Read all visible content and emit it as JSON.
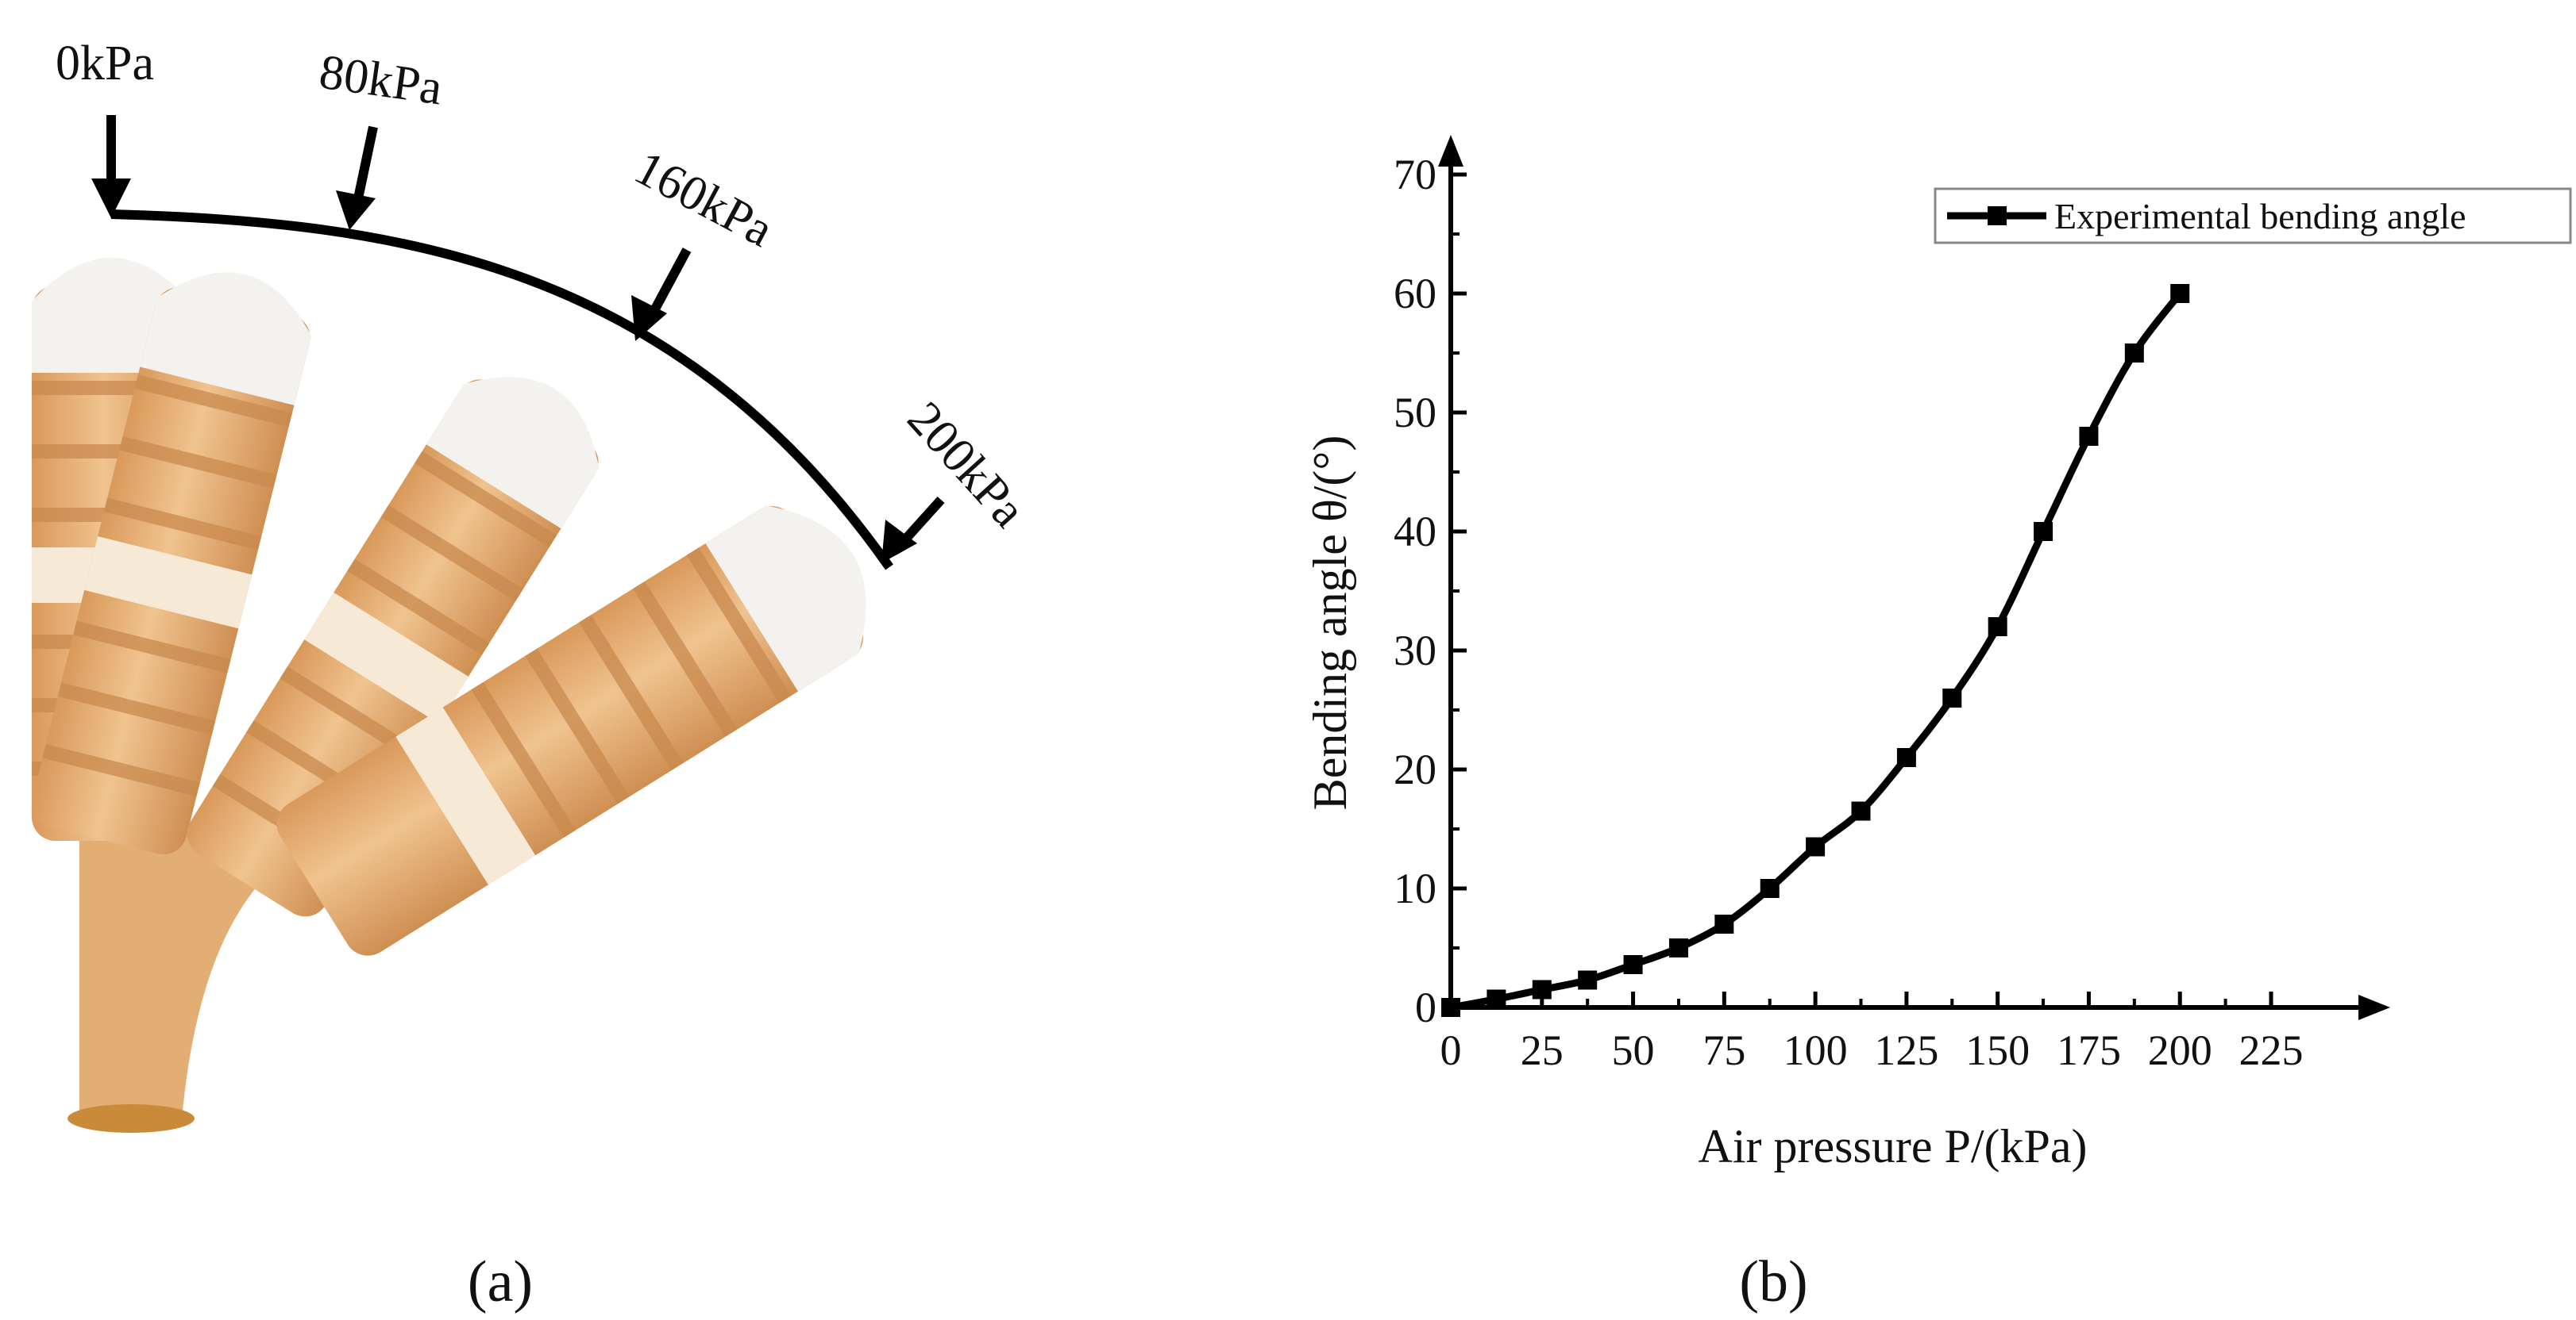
{
  "panel_a": {
    "caption": "(a)",
    "pressure_labels": [
      "0kPa",
      "80kPa",
      "160kPa",
      "200kPa"
    ]
  },
  "panel_b": {
    "caption": "(b)"
  },
  "colors": {
    "actuator_body": "#e8b67e",
    "actuator_shadow": "#c98a4e",
    "tip": "#f4f2ee",
    "line": "#000000"
  },
  "chart_data": {
    "type": "line",
    "title": "",
    "xlabel": "Air pressure P/(kPa)",
    "ylabel": "Bending angle θ/(°)",
    "xlim": [
      0,
      225
    ],
    "ylim": [
      0,
      70
    ],
    "xticks": [
      0,
      25,
      50,
      75,
      100,
      125,
      150,
      175,
      200,
      225
    ],
    "yticks": [
      0,
      10,
      20,
      30,
      40,
      50,
      60,
      70
    ],
    "grid": false,
    "legend_position": "top-right",
    "series": [
      {
        "name": "Experimental bending angle",
        "marker": "square",
        "x": [
          0,
          12.5,
          25,
          37.5,
          50,
          62.5,
          75,
          87.5,
          100,
          112.5,
          125,
          137.5,
          150,
          162.5,
          175,
          187.5,
          200
        ],
        "y": [
          0,
          0.7,
          1.5,
          2.3,
          3.6,
          5.0,
          7.0,
          10.0,
          13.5,
          16.5,
          21.0,
          26.0,
          32.0,
          40.0,
          48.0,
          55.0,
          60.0
        ]
      }
    ]
  }
}
